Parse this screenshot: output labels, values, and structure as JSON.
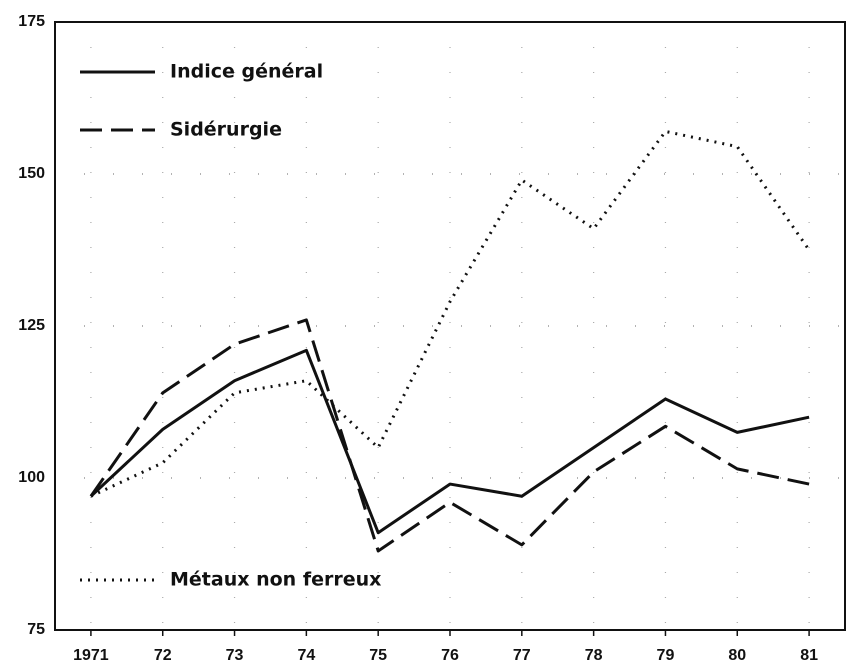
{
  "chart_data": {
    "type": "line",
    "categories": [
      "1971",
      "72",
      "73",
      "74",
      "75",
      "76",
      "77",
      "78",
      "79",
      "80",
      "81"
    ],
    "series": [
      {
        "name": "Indice général",
        "color": "#111111",
        "dash": "solid",
        "values": [
          97,
          108,
          116,
          121,
          91,
          99,
          97,
          105,
          113,
          107.5,
          110
        ]
      },
      {
        "name": "Sidérurgie",
        "color": "#111111",
        "dash": "dashed",
        "values": [
          97,
          114,
          122,
          126,
          88,
          96,
          89,
          101,
          108.5,
          101.5,
          99
        ]
      },
      {
        "name": "Métaux non ferreux",
        "color": "#111111",
        "dash": "dotted",
        "values": [
          97,
          102.5,
          114,
          116,
          105,
          129,
          149,
          141,
          157,
          154.5,
          137.5
        ]
      }
    ],
    "ylim": [
      75,
      175
    ],
    "yticks": [
      75,
      100,
      125,
      150,
      175
    ],
    "grid": true
  }
}
